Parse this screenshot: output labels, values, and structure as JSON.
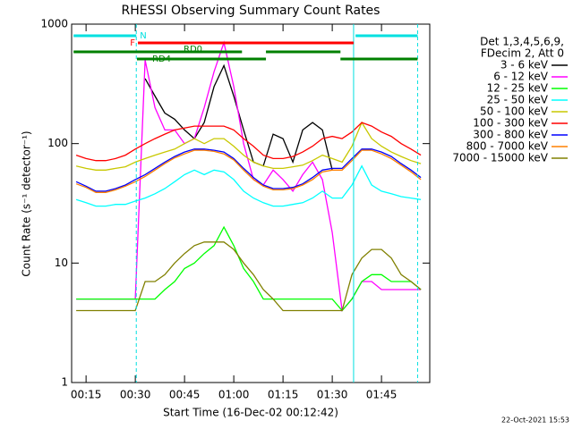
{
  "chart_data": {
    "type": "line",
    "title": "RHESSI Observing Summary Count Rates",
    "xlabel": "Start Time (16-Dec-02 00:12:42)",
    "ylabel": "Count Rate (s⁻¹ detector⁻¹)",
    "log_y": true,
    "xlim": [
      10.6,
      119.7
    ],
    "ylim": [
      1,
      1000
    ],
    "yticks": [
      1,
      10,
      100,
      1000
    ],
    "xticks": [
      {
        "value": 15,
        "label": "00:15"
      },
      {
        "value": 30,
        "label": "00:30"
      },
      {
        "value": 45,
        "label": "00:45"
      },
      {
        "value": 60,
        "label": "01:00"
      },
      {
        "value": 75,
        "label": "01:15"
      },
      {
        "value": 90,
        "label": "01:30"
      },
      {
        "value": 105,
        "label": "01:45"
      }
    ],
    "legend_title": [
      "Det 1,3,4,5,6,9,",
      "FDecim 2, Att 0"
    ],
    "footer": "22-Oct-2021 15:53",
    "flags": [
      {
        "label": "N",
        "color": "#00e0e0",
        "segments": [
          [
            11.2,
            30.3
          ],
          [
            97.1,
            116
          ]
        ]
      },
      {
        "label": "F",
        "color": "#ff0000",
        "segments": [
          [
            30.8,
            96.5
          ]
        ]
      },
      {
        "label": "RD0",
        "color": "#008000",
        "segments": [
          [
            11.2,
            62.5
          ],
          [
            69.8,
            92.5
          ]
        ]
      },
      {
        "label": "RD4",
        "color": "#008000",
        "segments": [
          [
            30.5,
            69.8
          ],
          [
            92.5,
            116
          ]
        ]
      }
    ],
    "vlines": [
      {
        "x": 30.3,
        "dashed": true
      },
      {
        "x": 96.5,
        "dashed": false
      },
      {
        "x": 116,
        "dashed": true
      }
    ],
    "vline_color": "#00e0e0",
    "x": [
      12,
      15,
      18,
      21,
      24,
      27,
      30,
      33,
      36,
      39,
      42,
      45,
      48,
      51,
      54,
      57,
      60,
      63,
      66,
      69,
      72,
      75,
      78,
      81,
      84,
      87,
      90,
      93,
      96,
      99,
      102,
      105,
      108,
      111,
      114,
      117
    ],
    "series": [
      {
        "name": "3 - 6 keV",
        "color": "#000000",
        "values": [
          null,
          null,
          null,
          null,
          null,
          null,
          null,
          350,
          250,
          180,
          160,
          130,
          110,
          150,
          300,
          450,
          250,
          130,
          70,
          65,
          120,
          110,
          70,
          130,
          150,
          130,
          60,
          null,
          null,
          null,
          null,
          null,
          null,
          null,
          null,
          null
        ]
      },
      {
        "name": "6 - 12 keV",
        "color": "#ff00ff",
        "values": [
          5,
          5,
          5,
          5,
          5,
          5,
          5,
          500,
          200,
          130,
          130,
          100,
          110,
          200,
          400,
          700,
          300,
          100,
          50,
          45,
          60,
          50,
          40,
          55,
          70,
          50,
          18,
          4,
          5,
          7,
          7,
          6,
          6,
          6,
          6,
          6
        ]
      },
      {
        "name": "12 - 25 keV",
        "color": "#00ff00",
        "values": [
          5,
          5,
          5,
          5,
          5,
          5,
          5,
          5,
          5,
          6,
          7,
          9,
          10,
          12,
          14,
          20,
          14,
          9,
          7,
          5,
          5,
          5,
          5,
          5,
          5,
          5,
          5,
          4,
          5,
          7,
          8,
          8,
          7,
          7,
          7,
          6
        ]
      },
      {
        "name": "25 - 50 keV",
        "color": "#00ffff",
        "values": [
          34,
          32,
          30,
          30,
          31,
          31,
          33,
          35,
          38,
          42,
          48,
          55,
          60,
          55,
          60,
          58,
          50,
          40,
          35,
          32,
          30,
          30,
          31,
          32,
          35,
          40,
          35,
          35,
          45,
          65,
          45,
          40,
          38,
          36,
          35,
          34
        ]
      },
      {
        "name": "50 - 100 keV",
        "color": "#c8c800",
        "values": [
          65,
          62,
          60,
          60,
          62,
          64,
          70,
          75,
          80,
          85,
          90,
          100,
          110,
          100,
          110,
          110,
          95,
          80,
          70,
          65,
          62,
          62,
          64,
          66,
          72,
          80,
          75,
          70,
          95,
          150,
          110,
          95,
          85,
          78,
          72,
          68
        ]
      },
      {
        "name": "100 - 300 keV",
        "color": "#ff0000",
        "values": [
          80,
          75,
          72,
          72,
          75,
          80,
          90,
          100,
          110,
          120,
          130,
          135,
          140,
          140,
          140,
          140,
          130,
          110,
          95,
          80,
          75,
          75,
          78,
          85,
          95,
          110,
          115,
          110,
          125,
          150,
          140,
          125,
          115,
          100,
          90,
          80
        ]
      },
      {
        "name": "300 - 800 keV",
        "color": "#0000ff",
        "values": [
          48,
          44,
          40,
          40,
          42,
          45,
          50,
          55,
          62,
          70,
          78,
          85,
          90,
          90,
          88,
          85,
          75,
          62,
          52,
          45,
          42,
          42,
          43,
          46,
          52,
          60,
          62,
          62,
          75,
          90,
          90,
          85,
          78,
          68,
          60,
          52
        ]
      },
      {
        "name": "800 - 7000 keV",
        "color": "#ff8000",
        "values": [
          46,
          43,
          39,
          39,
          41,
          44,
          48,
          53,
          60,
          68,
          76,
          82,
          88,
          88,
          86,
          82,
          73,
          60,
          50,
          44,
          41,
          41,
          42,
          45,
          50,
          58,
          60,
          60,
          72,
          88,
          88,
          82,
          75,
          66,
          58,
          50
        ]
      },
      {
        "name": "7000 - 15000 keV",
        "color": "#808000",
        "values": [
          4,
          4,
          4,
          4,
          4,
          4,
          4,
          7,
          7,
          8,
          10,
          12,
          14,
          15,
          15,
          15,
          13,
          10,
          8,
          6,
          5,
          4,
          4,
          4,
          4,
          4,
          4,
          4,
          8,
          11,
          13,
          13,
          11,
          8,
          7,
          6
        ]
      }
    ]
  }
}
